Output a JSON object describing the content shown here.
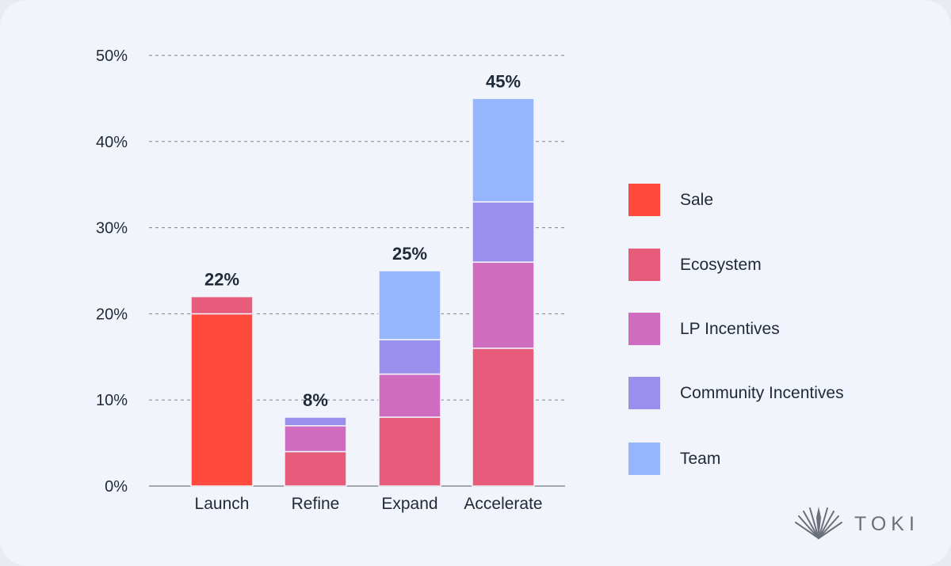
{
  "chart_data": {
    "type": "bar",
    "stacked": true,
    "categories": [
      "Launch",
      "Refine",
      "Expand",
      "Accelerate"
    ],
    "series": [
      {
        "name": "Sale",
        "color": "#ff4a3d",
        "values": [
          20,
          0,
          0,
          0
        ]
      },
      {
        "name": "Ecosystem",
        "color": "#e65c7a",
        "values": [
          2,
          4,
          8,
          16
        ]
      },
      {
        "name": "LP Incentives",
        "color": "#d06cc0",
        "values": [
          0,
          3,
          5,
          10
        ]
      },
      {
        "name": "Community Incentives",
        "color": "#9b8fee",
        "values": [
          0,
          1,
          4,
          7
        ]
      },
      {
        "name": "Team",
        "color": "#95b5fd",
        "values": [
          0,
          0,
          8,
          12
        ]
      }
    ],
    "totals": [
      22,
      8,
      25,
      45
    ],
    "total_labels": [
      "22%",
      "8%",
      "25%",
      "45%"
    ],
    "yticks": [
      "0%",
      "10%",
      "20%",
      "30%",
      "40%",
      "50%"
    ],
    "ylim": [
      0,
      50
    ],
    "grid": true,
    "legend": "right"
  },
  "legend": [
    "Sale",
    "Ecosystem",
    "LP Incentives",
    "Community Incentives",
    "Team"
  ],
  "brand": {
    "name": "TOKI",
    "icon": "fan-emblem-icon"
  },
  "colors": {
    "background": "#f2f4fc",
    "axis": "#8a8f98",
    "text": "#1f2937"
  }
}
